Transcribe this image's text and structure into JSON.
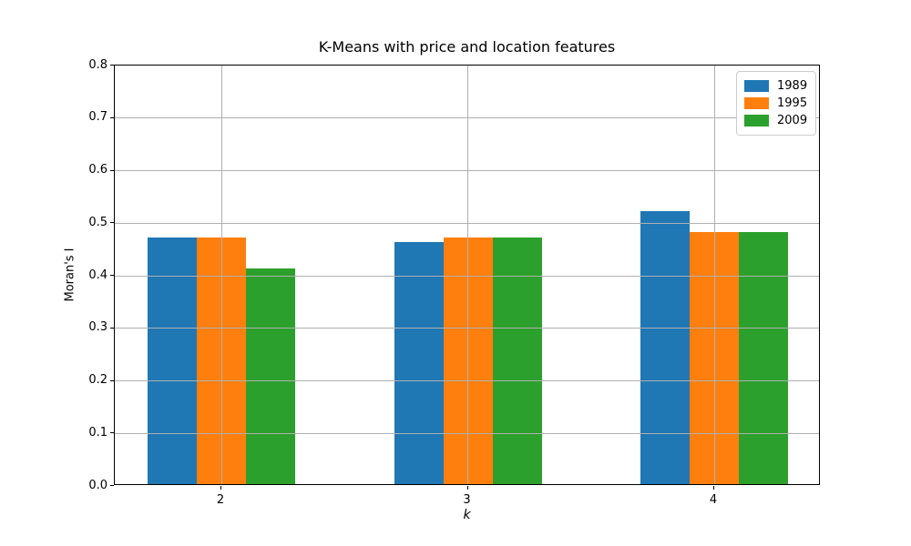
{
  "chart_data": {
    "type": "bar",
    "title": "K-Means with price and location features",
    "xlabel": "k",
    "ylabel": "Moran's I",
    "categories": [
      "2",
      "3",
      "4"
    ],
    "series": [
      {
        "name": "1989",
        "color": "#1f77b4",
        "values": [
          0.47,
          0.46,
          0.52
        ]
      },
      {
        "name": "1995",
        "color": "#ff7f0e",
        "values": [
          0.47,
          0.47,
          0.48
        ]
      },
      {
        "name": "2009",
        "color": "#2ca02c",
        "values": [
          0.41,
          0.47,
          0.48
        ]
      }
    ],
    "ylim": [
      0.0,
      0.8
    ],
    "yticks": [
      "0.0",
      "0.1",
      "0.2",
      "0.3",
      "0.4",
      "0.5",
      "0.6",
      "0.7",
      "0.8"
    ],
    "grid": true,
    "grid_color": "#b0b0b0",
    "legend_position": "upper right",
    "background_color": "#ffffff"
  }
}
